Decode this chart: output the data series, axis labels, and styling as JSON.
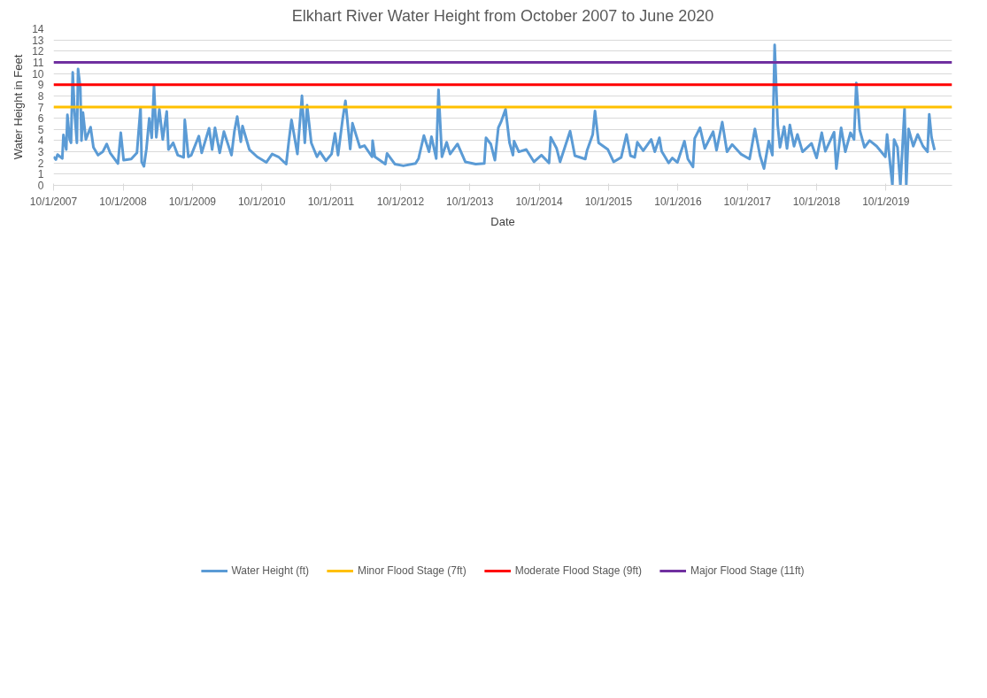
{
  "chart_data": {
    "type": "line",
    "title": "Elkhart River Water Height from October 2007 to June 2020",
    "xlabel": "Date",
    "ylabel": "Water Height in Feet",
    "xlim": [
      "2007-10-01",
      "2020-09-13"
    ],
    "ylim": [
      0,
      14
    ],
    "yticks": [
      0,
      1,
      2,
      3,
      4,
      5,
      6,
      7,
      8,
      9,
      10,
      11,
      12,
      13,
      14
    ],
    "xticks": [
      {
        "value": "2007-10-01",
        "label": "10/1/2007"
      },
      {
        "value": "2008-10-01",
        "label": "10/1/2008"
      },
      {
        "value": "2009-10-01",
        "label": "10/1/2009"
      },
      {
        "value": "2010-10-01",
        "label": "10/1/2010"
      },
      {
        "value": "2011-10-01",
        "label": "10/1/2011"
      },
      {
        "value": "2012-10-01",
        "label": "10/1/2012"
      },
      {
        "value": "2013-10-01",
        "label": "10/1/2013"
      },
      {
        "value": "2014-10-01",
        "label": "10/1/2014"
      },
      {
        "value": "2015-10-01",
        "label": "10/1/2015"
      },
      {
        "value": "2016-10-01",
        "label": "10/1/2016"
      },
      {
        "value": "2017-10-01",
        "label": "10/1/2017"
      },
      {
        "value": "2018-10-01",
        "label": "10/1/2018"
      },
      {
        "value": "2019-10-01",
        "label": "10/1/2019"
      }
    ],
    "grid": "y",
    "legend": "bottom",
    "line_style": "solid",
    "marker": "none",
    "x": [
      "2007-10-01",
      "2007-10-13",
      "2007-10-22",
      "2007-11-16",
      "2007-11-22",
      "2007-12-07",
      "2007-12-13",
      "2007-12-25",
      "2008-01-01",
      "2008-01-10",
      "2008-01-19",
      "2008-02-01",
      "2008-02-07",
      "2008-02-19",
      "2008-02-25",
      "2008-03-04",
      "2008-03-19",
      "2008-04-13",
      "2008-04-28",
      "2008-05-22",
      "2008-06-16",
      "2008-07-07",
      "2008-07-25",
      "2008-09-04",
      "2008-09-19",
      "2008-10-04",
      "2008-11-13",
      "2008-12-13",
      "2009-01-01",
      "2009-01-07",
      "2009-01-19",
      "2009-02-01",
      "2009-02-16",
      "2009-03-01",
      "2009-03-13",
      "2009-03-25",
      "2009-04-10",
      "2009-04-28",
      "2009-05-19",
      "2009-05-28",
      "2009-06-22",
      "2009-07-16",
      "2009-08-16",
      "2009-08-22",
      "2009-09-10",
      "2009-09-25",
      "2009-11-04",
      "2009-11-19",
      "2009-12-28",
      "2010-01-13",
      "2010-01-28",
      "2010-02-22",
      "2010-03-16",
      "2010-04-25",
      "2010-05-10",
      "2010-05-25",
      "2010-06-13",
      "2010-06-22",
      "2010-07-28",
      "2010-09-07",
      "2010-10-25",
      "2010-11-25",
      "2010-12-28",
      "2011-02-07",
      "2011-02-22",
      "2011-03-07",
      "2011-04-07",
      "2011-05-01",
      "2011-05-16",
      "2011-05-28",
      "2011-06-19",
      "2011-07-19",
      "2011-08-04",
      "2011-09-04",
      "2011-10-04",
      "2011-10-22",
      "2011-11-07",
      "2011-12-01",
      "2011-12-16",
      "2012-01-10",
      "2012-01-22",
      "2012-03-01",
      "2012-03-25",
      "2012-05-04",
      "2012-05-07",
      "2012-05-19",
      "2012-07-13",
      "2012-07-22",
      "2012-09-01",
      "2012-10-16",
      "2012-12-19",
      "2013-01-04",
      "2013-02-01",
      "2013-02-28",
      "2013-03-13",
      "2013-04-07",
      "2013-04-19",
      "2013-05-07",
      "2013-06-01",
      "2013-06-19",
      "2013-07-28",
      "2013-09-07",
      "2013-11-01",
      "2013-12-16",
      "2013-12-25",
      "2014-01-19",
      "2014-02-10",
      "2014-02-28",
      "2014-03-16",
      "2014-04-07",
      "2014-04-28",
      "2014-05-16",
      "2014-05-22",
      "2014-06-16",
      "2014-07-25",
      "2014-09-04",
      "2014-10-13",
      "2014-11-22",
      "2014-12-01",
      "2015-01-01",
      "2015-01-19",
      "2015-03-13",
      "2015-04-07",
      "2015-06-01",
      "2015-06-10",
      "2015-07-10",
      "2015-07-22",
      "2015-08-10",
      "2015-09-28",
      "2015-10-28",
      "2015-12-07",
      "2016-01-04",
      "2016-01-25",
      "2016-02-16",
      "2016-03-01",
      "2016-04-01",
      "2016-05-13",
      "2016-06-01",
      "2016-06-25",
      "2016-07-07",
      "2016-08-13",
      "2016-09-01",
      "2016-09-28",
      "2016-11-04",
      "2016-11-22",
      "2016-12-19",
      "2016-12-28",
      "2017-01-25",
      "2017-02-19",
      "2017-04-04",
      "2017-04-22",
      "2017-05-22",
      "2017-06-16",
      "2017-07-13",
      "2017-08-28",
      "2017-10-13",
      "2017-11-10",
      "2017-12-07",
      "2017-12-28",
      "2018-01-22",
      "2018-02-10",
      "2018-02-22",
      "2018-03-10",
      "2018-03-22",
      "2018-04-13",
      "2018-04-28",
      "2018-05-13",
      "2018-06-04",
      "2018-06-22",
      "2018-07-19",
      "2018-09-04",
      "2018-10-01",
      "2018-10-28",
      "2018-11-16",
      "2019-01-01",
      "2019-01-13",
      "2019-02-07",
      "2019-03-01",
      "2019-03-28",
      "2019-04-16",
      "2019-04-28",
      "2019-05-16",
      "2019-06-10",
      "2019-07-07",
      "2019-08-13",
      "2019-09-28",
      "2019-10-07",
      "2019-11-04",
      "2019-11-13",
      "2019-12-01",
      "2019-12-16",
      "2020-01-07",
      "2020-01-16",
      "2020-01-28",
      "2020-02-22",
      "2020-03-16",
      "2020-04-13",
      "2020-05-07",
      "2020-05-16",
      "2020-05-28",
      "2020-06-13"
    ],
    "series": [
      {
        "name": "Water Height (ft)",
        "color": "#5b9bd5",
        "values": [
          2.56,
          2.3,
          2.75,
          2.4,
          4.5,
          3.2,
          6.3,
          4.1,
          3.8,
          10.1,
          6.7,
          3.8,
          10.4,
          8.7,
          4.0,
          6.5,
          4.1,
          5.2,
          3.4,
          2.7,
          3.0,
          3.7,
          2.9,
          1.95,
          4.7,
          2.25,
          2.35,
          2.9,
          6.95,
          2.1,
          1.7,
          3.25,
          6.0,
          4.25,
          8.9,
          4.3,
          6.8,
          4.1,
          6.6,
          3.2,
          3.8,
          2.7,
          2.5,
          5.85,
          2.55,
          2.7,
          4.4,
          2.9,
          5.1,
          3.2,
          5.15,
          2.9,
          4.8,
          2.7,
          4.8,
          6.15,
          3.9,
          5.3,
          3.2,
          2.55,
          2.05,
          2.8,
          2.55,
          1.9,
          4.1,
          5.85,
          2.8,
          8.0,
          3.8,
          7.15,
          3.8,
          2.55,
          3.0,
          2.2,
          2.8,
          4.65,
          2.7,
          5.9,
          7.55,
          3.25,
          5.55,
          3.4,
          3.55,
          2.55,
          4.0,
          2.55,
          1.9,
          2.85,
          1.9,
          1.75,
          1.95,
          2.4,
          4.45,
          3.0,
          4.35,
          2.4,
          8.55,
          2.55,
          3.85,
          2.8,
          3.7,
          2.1,
          1.9,
          1.95,
          4.25,
          3.7,
          2.25,
          5.15,
          5.75,
          6.8,
          3.8,
          2.7,
          3.95,
          3.0,
          3.2,
          2.1,
          2.7,
          2.0,
          4.3,
          3.3,
          2.1,
          4.85,
          2.65,
          2.35,
          3.1,
          4.55,
          6.65,
          3.8,
          3.2,
          2.1,
          2.5,
          4.55,
          2.65,
          2.5,
          3.85,
          3.1,
          4.1,
          3.0,
          4.25,
          3.05,
          2.0,
          2.45,
          2.05,
          3.95,
          2.35,
          1.65,
          4.2,
          5.15,
          3.3,
          4.8,
          3.15,
          5.65,
          3.0,
          3.65,
          2.8,
          2.35,
          5.05,
          2.65,
          1.5,
          3.95,
          2.7,
          12.55,
          5.4,
          3.4,
          5.25,
          3.3,
          5.4,
          3.5,
          4.55,
          3.0,
          3.75,
          2.45,
          4.7,
          3.05,
          4.75,
          1.5,
          5.15,
          3.0,
          4.7,
          4.1,
          9.15,
          4.95,
          3.4,
          4.0,
          3.5,
          2.55,
          4.55,
          0,
          4.1,
          3.4,
          0,
          6.85,
          0,
          5.05,
          3.5,
          4.55,
          3.5,
          3.0,
          6.35,
          4.3,
          3.15
        ]
      }
    ],
    "ref_lines": [
      {
        "axis": "y",
        "value": 7,
        "label": "Minor Flood Stage (7ft)",
        "color": "#ffc000"
      },
      {
        "axis": "y",
        "value": 9,
        "label": "Moderate Flood Stage (9ft)",
        "color": "#ff0000"
      },
      {
        "axis": "y",
        "value": 11,
        "label": "Major Flood Stage (11ft)",
        "color": "#7030a0"
      }
    ]
  }
}
